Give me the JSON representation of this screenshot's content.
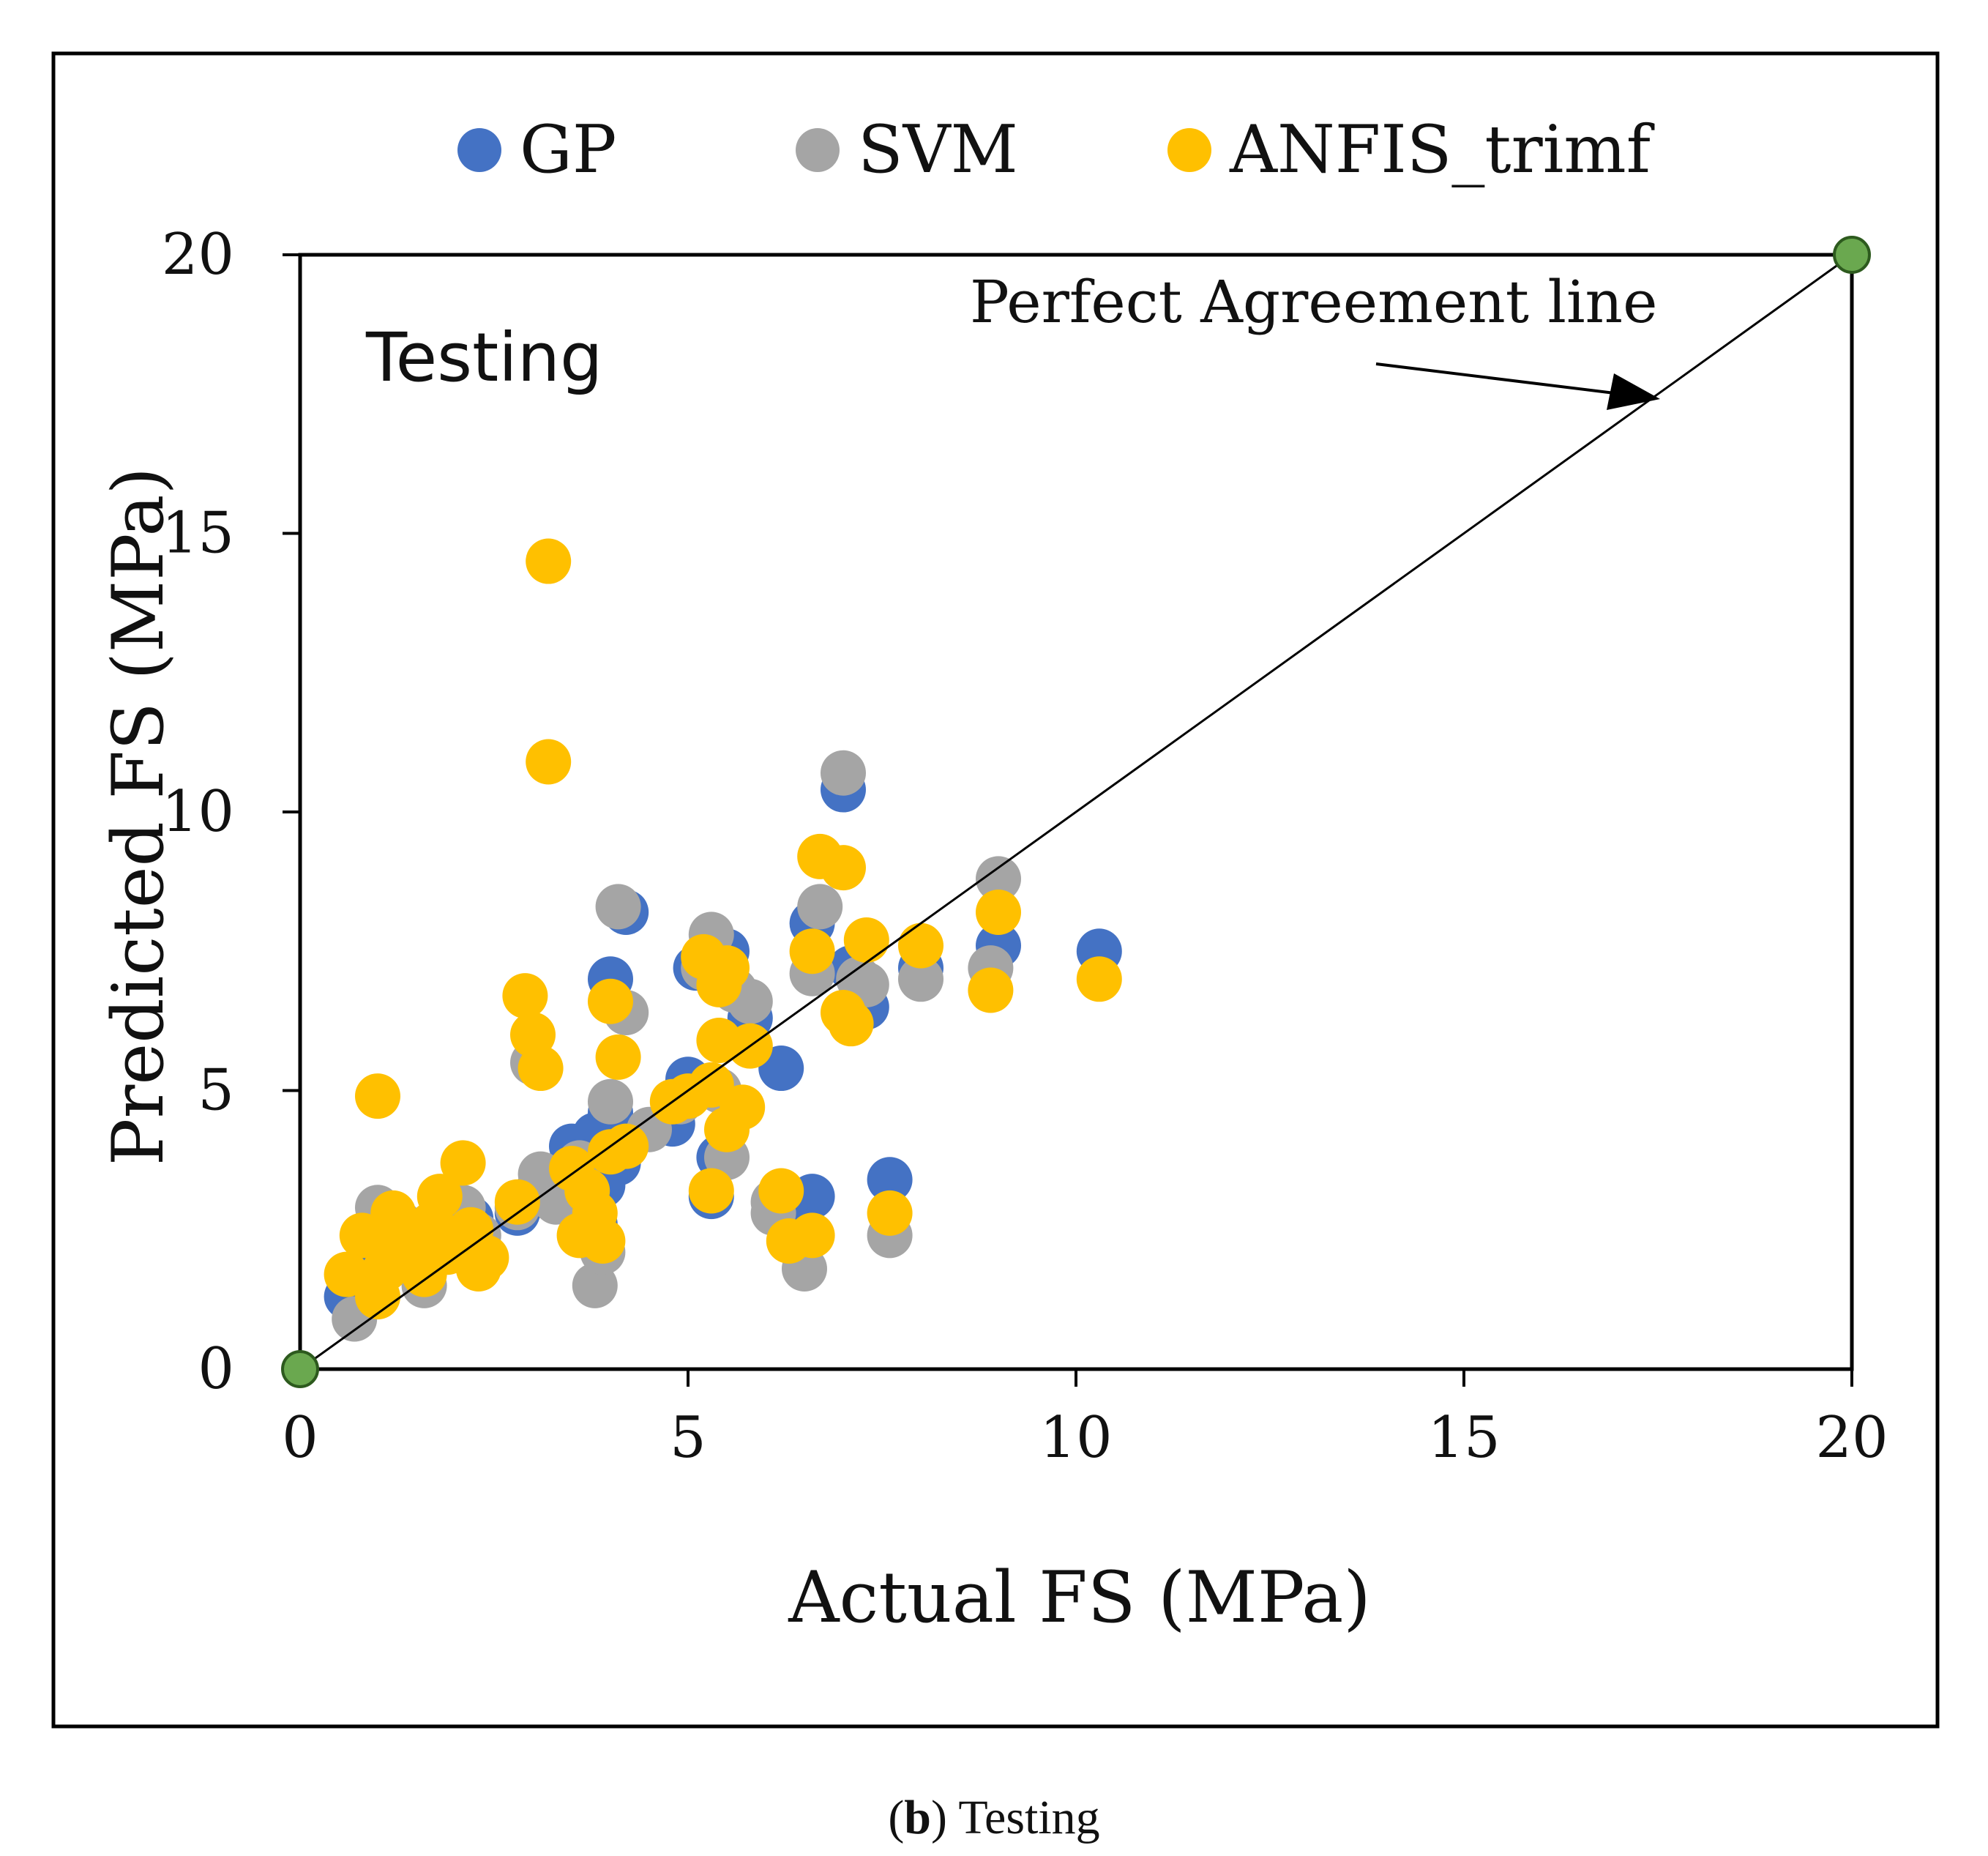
{
  "caption": {
    "letter": "b",
    "text": "Testing"
  },
  "chart_data": {
    "type": "scatter",
    "title": "",
    "panel_label": "Testing",
    "xlabel": "Actual FS (MPa)",
    "ylabel": "Predicted FS (MPa)",
    "xlim": [
      0,
      20
    ],
    "ylim": [
      0,
      20
    ],
    "xticks": [
      0,
      5,
      10,
      15,
      20
    ],
    "yticks": [
      0,
      5,
      10,
      15,
      20
    ],
    "legend": {
      "placement": "top"
    },
    "reference_line": {
      "label": "Perfect Agreement line",
      "x": [
        0,
        20
      ],
      "y": [
        0,
        20
      ],
      "marker_color": "#6aa84f"
    },
    "series": [
      {
        "name": "GP",
        "color": "#4472c4",
        "points": [
          [
            0.6,
            1.3
          ],
          [
            0.8,
            1.6
          ],
          [
            1.0,
            2.0
          ],
          [
            1.1,
            2.4
          ],
          [
            1.3,
            2.2
          ],
          [
            1.6,
            1.9
          ],
          [
            1.9,
            2.4
          ],
          [
            2.2,
            2.7
          ],
          [
            2.3,
            2.1
          ],
          [
            2.8,
            2.8
          ],
          [
            3.0,
            3.1
          ],
          [
            3.5,
            4.0
          ],
          [
            3.8,
            4.2
          ],
          [
            3.9,
            3.3
          ],
          [
            4.0,
            7.0
          ],
          [
            4.2,
            8.2
          ],
          [
            4.1,
            3.7
          ],
          [
            4.8,
            4.4
          ],
          [
            5.0,
            5.2
          ],
          [
            5.1,
            7.2
          ],
          [
            5.3,
            7.6
          ],
          [
            5.4,
            3.8
          ],
          [
            5.5,
            7.5
          ],
          [
            5.8,
            6.3
          ],
          [
            6.2,
            5.4
          ],
          [
            6.6,
            3.1
          ],
          [
            6.6,
            8.0
          ],
          [
            7.0,
            10.4
          ],
          [
            7.1,
            7.2
          ],
          [
            7.3,
            6.5
          ],
          [
            7.6,
            3.4
          ],
          [
            8.0,
            7.2
          ],
          [
            9.0,
            7.6
          ],
          [
            10.3,
            7.5
          ],
          [
            5.3,
            3.1
          ],
          [
            3.8,
            2.6
          ],
          [
            4.0,
            4.6
          ],
          [
            6.4,
            2.5
          ]
        ]
      },
      {
        "name": "SVM",
        "color": "#a5a5a5",
        "points": [
          [
            0.7,
            0.9
          ],
          [
            1.0,
            2.9
          ],
          [
            1.3,
            2.6
          ],
          [
            1.6,
            1.5
          ],
          [
            2.1,
            2.9
          ],
          [
            2.3,
            2.4
          ],
          [
            2.8,
            2.9
          ],
          [
            3.0,
            5.5
          ],
          [
            3.1,
            3.5
          ],
          [
            3.3,
            3.0
          ],
          [
            3.6,
            3.7
          ],
          [
            3.8,
            1.5
          ],
          [
            3.9,
            2.1
          ],
          [
            4.0,
            4.8
          ],
          [
            4.1,
            8.3
          ],
          [
            4.2,
            6.4
          ],
          [
            4.5,
            4.3
          ],
          [
            4.9,
            4.8
          ],
          [
            5.2,
            7.2
          ],
          [
            5.3,
            7.8
          ],
          [
            5.5,
            3.8
          ],
          [
            5.6,
            6.8
          ],
          [
            5.8,
            6.6
          ],
          [
            6.1,
            3.0
          ],
          [
            6.5,
            1.8
          ],
          [
            6.6,
            7.1
          ],
          [
            6.7,
            8.3
          ],
          [
            7.0,
            10.7
          ],
          [
            7.2,
            7.0
          ],
          [
            7.3,
            6.9
          ],
          [
            7.6,
            2.4
          ],
          [
            8.0,
            7.0
          ],
          [
            8.9,
            7.2
          ],
          [
            9.0,
            8.8
          ],
          [
            6.1,
            2.8
          ],
          [
            5.4,
            5.0
          ]
        ]
      },
      {
        "name": "ANFIS_trimf",
        "color": "#ffc000",
        "points": [
          [
            0.6,
            1.7
          ],
          [
            0.8,
            2.4
          ],
          [
            1.0,
            4.9
          ],
          [
            1.0,
            1.3
          ],
          [
            1.1,
            1.8
          ],
          [
            1.2,
            2.8
          ],
          [
            1.3,
            2.3
          ],
          [
            1.5,
            2.0
          ],
          [
            1.6,
            1.7
          ],
          [
            1.7,
            2.6
          ],
          [
            1.8,
            3.1
          ],
          [
            1.9,
            2.1
          ],
          [
            2.1,
            3.7
          ],
          [
            2.2,
            2.5
          ],
          [
            2.3,
            1.8
          ],
          [
            2.4,
            2.0
          ],
          [
            2.8,
            3.0
          ],
          [
            2.9,
            6.7
          ],
          [
            3.0,
            6.0
          ],
          [
            3.1,
            5.4
          ],
          [
            3.2,
            14.5
          ],
          [
            3.2,
            10.9
          ],
          [
            3.5,
            3.6
          ],
          [
            3.6,
            2.4
          ],
          [
            3.7,
            3.2
          ],
          [
            3.8,
            2.8
          ],
          [
            3.9,
            2.3
          ],
          [
            4.0,
            3.9
          ],
          [
            4.0,
            6.6
          ],
          [
            4.1,
            5.6
          ],
          [
            4.2,
            4.0
          ],
          [
            4.8,
            4.8
          ],
          [
            5.0,
            4.9
          ],
          [
            5.2,
            7.4
          ],
          [
            5.3,
            5.1
          ],
          [
            5.3,
            3.2
          ],
          [
            5.4,
            5.9
          ],
          [
            5.4,
            6.9
          ],
          [
            5.5,
            7.2
          ],
          [
            5.5,
            4.3
          ],
          [
            5.7,
            4.7
          ],
          [
            5.8,
            5.8
          ],
          [
            6.2,
            3.2
          ],
          [
            6.3,
            2.3
          ],
          [
            6.6,
            2.4
          ],
          [
            6.6,
            7.5
          ],
          [
            6.7,
            9.2
          ],
          [
            7.0,
            9.0
          ],
          [
            7.0,
            6.4
          ],
          [
            7.1,
            6.2
          ],
          [
            7.3,
            7.7
          ],
          [
            7.6,
            2.8
          ],
          [
            8.0,
            7.6
          ],
          [
            8.9,
            6.8
          ],
          [
            9.0,
            8.2
          ],
          [
            10.3,
            7.0
          ]
        ]
      }
    ]
  }
}
